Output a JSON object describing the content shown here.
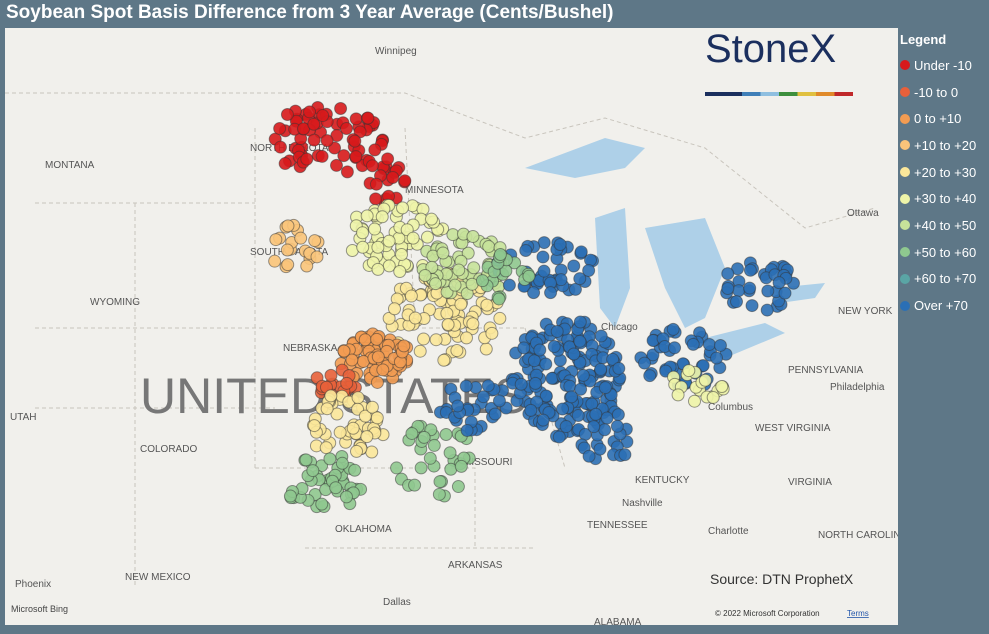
{
  "title": "Soybean Spot Basis Difference from 3 Year Average (Cents/Bushel)",
  "legend": {
    "title": "Legend",
    "items": [
      {
        "label": "Under -10",
        "color": "#d7191c"
      },
      {
        "label": "-10 to 0",
        "color": "#e8603a"
      },
      {
        "label": "0 to +10",
        "color": "#f39c52"
      },
      {
        "label": "+10 to +20",
        "color": "#f9c47a"
      },
      {
        "label": "+20 to +30",
        "color": "#fbe79a"
      },
      {
        "label": "+30 to +40",
        "color": "#eef4a8"
      },
      {
        "label": "+40 to +50",
        "color": "#c6e29a"
      },
      {
        "label": "+50 to +60",
        "color": "#8fc88f"
      },
      {
        "label": "+60 to +70",
        "color": "#5aa5a5"
      },
      {
        "label": "Over +70",
        "color": "#2b6fb5"
      }
    ]
  },
  "logo": "StoneX",
  "source": "Source: DTN ProphetX",
  "map": {
    "country": "UNITED STATES",
    "labels": [
      "Winnipeg",
      "MONTANA",
      "NORTH DAKOTA",
      "MINNESOTA",
      "SOUTH DAKOTA",
      "WYOMING",
      "NEBRASKA",
      "UTAH",
      "COLORADO",
      "NEW MEXICO",
      "Phoenix",
      "OKLAHOMA",
      "ARKANSAS",
      "Dallas",
      "MISSOURI",
      "KENTUCKY",
      "TENNESSEE",
      "Nashville",
      "Chicago",
      "Columbus",
      "WEST VIRGINIA",
      "VIRGINIA",
      "NORTH CAROLINA",
      "Charlotte",
      "PENNSYLVANIA",
      "Philadelphia",
      "NEW YORK",
      "Ottawa",
      "ALABAMA"
    ],
    "provider": "Microsoft Bing",
    "copyright": "© 2022 Microsoft Corporation",
    "terms": "Terms"
  }
}
